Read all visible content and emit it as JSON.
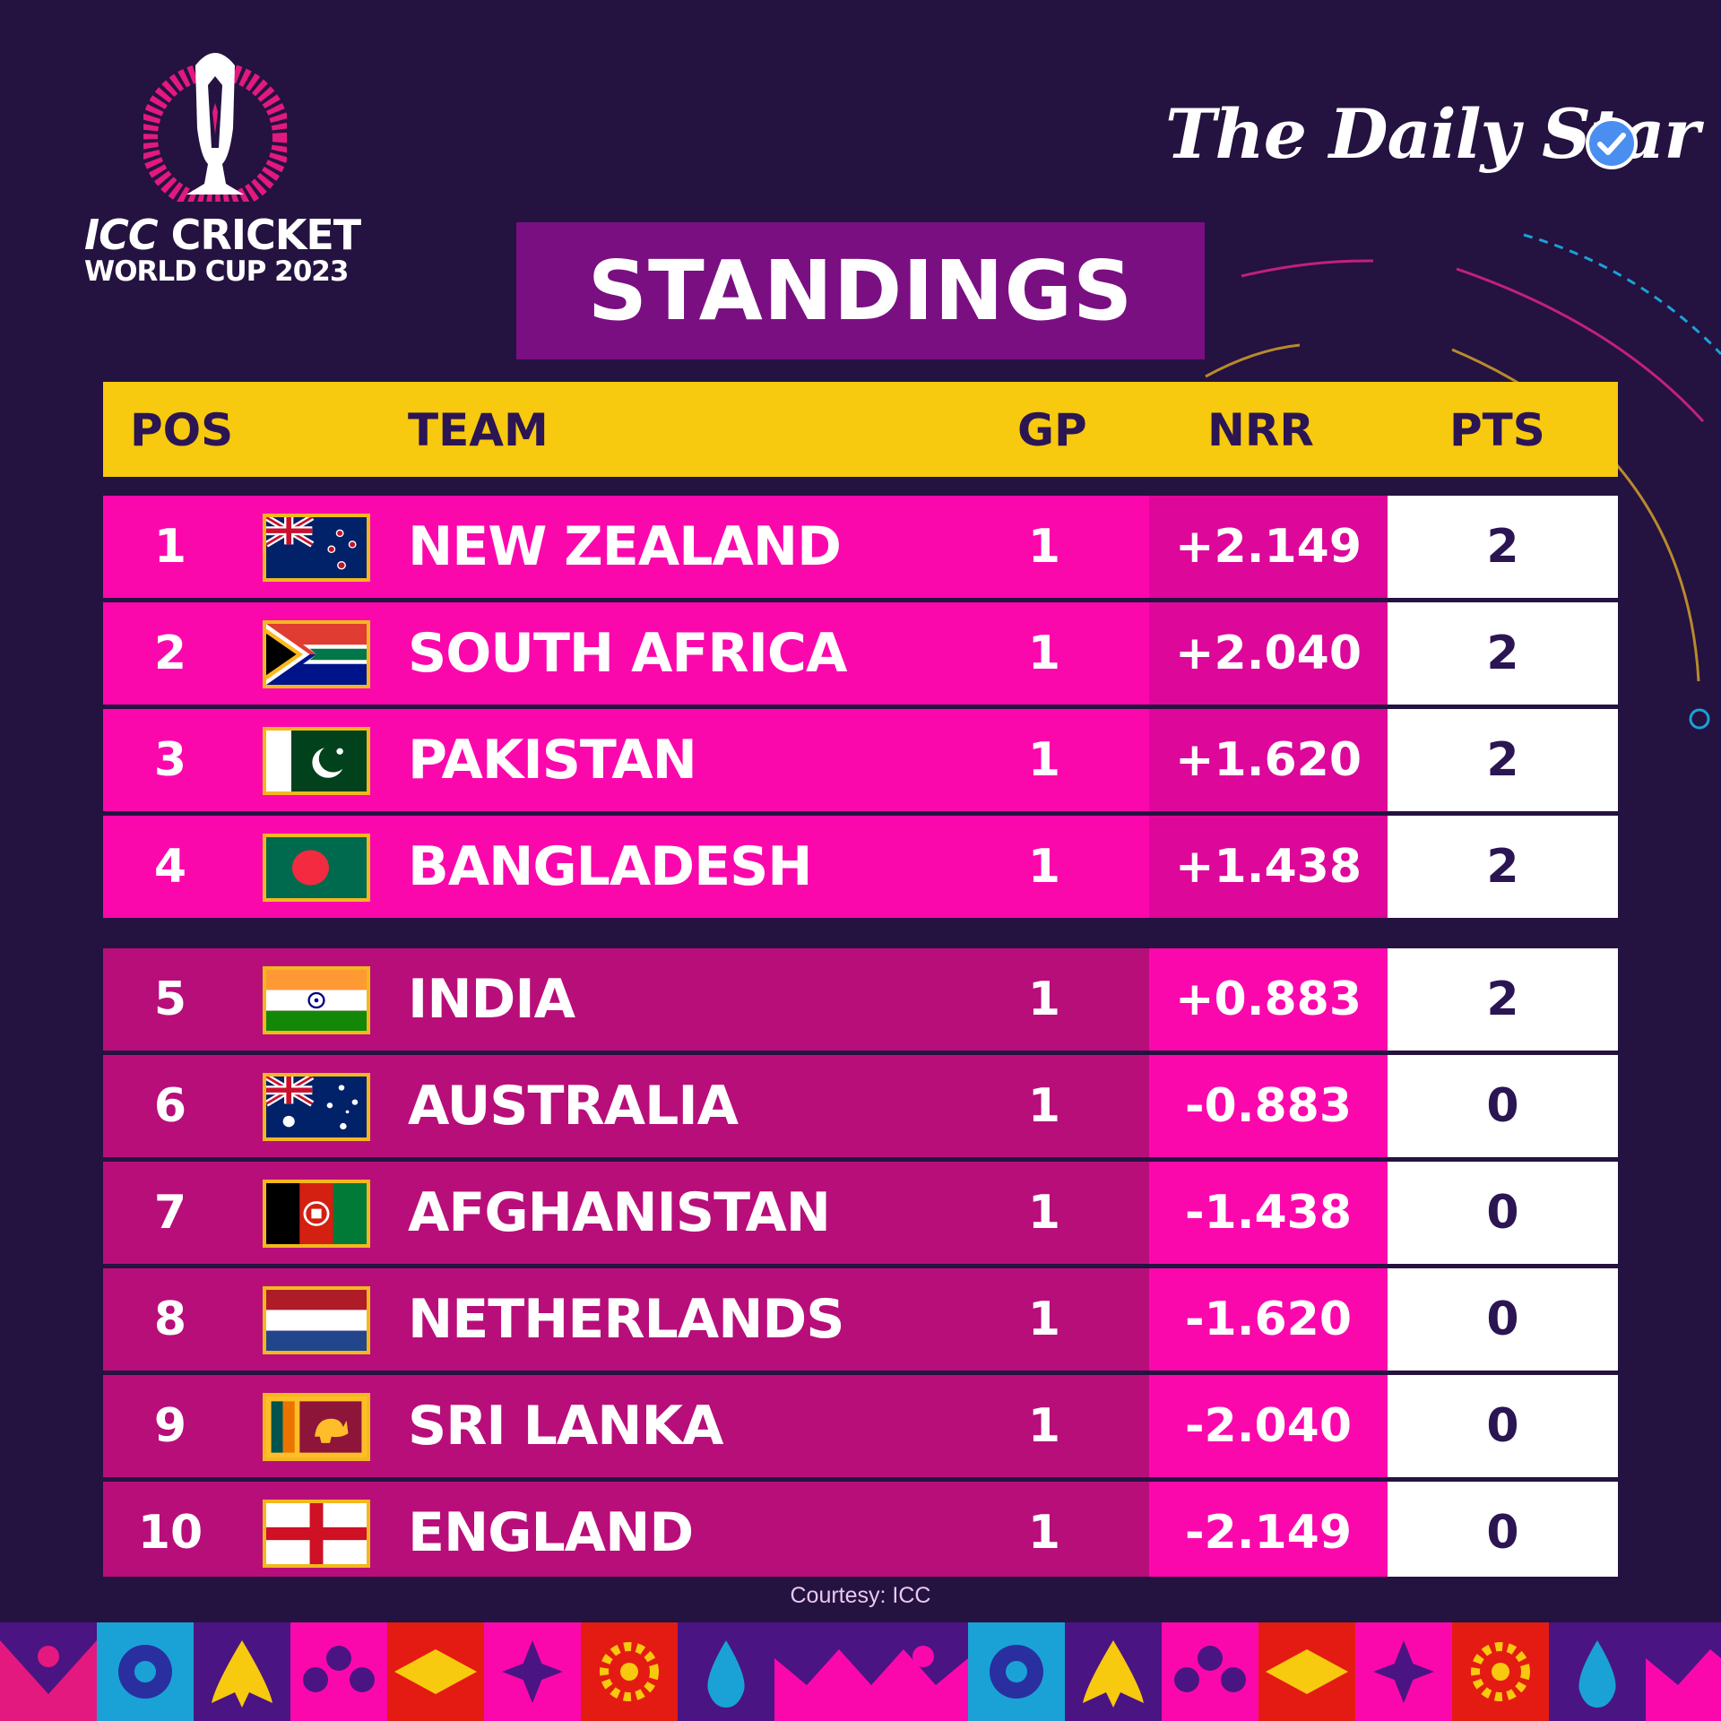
{
  "event_logo": {
    "line1_a": "ICC",
    "line1_b": "CRICKET",
    "line2": "WORLD CUP 2023",
    "icon": "trophy-icon"
  },
  "brand": {
    "name": "The Daily Star",
    "verified_icon": "verified-check-icon"
  },
  "title": "STANDINGS",
  "table": {
    "headers": {
      "pos": "POS",
      "team": "TEAM",
      "gp": "GP",
      "nrr": "NRR",
      "pts": "PTS"
    },
    "rows": [
      {
        "pos": "1",
        "team": "NEW ZEALAND",
        "gp": "1",
        "nrr": "+2.149",
        "pts": "2",
        "flag": "new-zealand-flag-icon"
      },
      {
        "pos": "2",
        "team": "SOUTH AFRICA",
        "gp": "1",
        "nrr": "+2.040",
        "pts": "2",
        "flag": "south-africa-flag-icon"
      },
      {
        "pos": "3",
        "team": "PAKISTAN",
        "gp": "1",
        "nrr": "+1.620",
        "pts": "2",
        "flag": "pakistan-flag-icon"
      },
      {
        "pos": "4",
        "team": "BANGLADESH",
        "gp": "1",
        "nrr": "+1.438",
        "pts": "2",
        "flag": "bangladesh-flag-icon"
      },
      {
        "pos": "5",
        "team": "INDIA",
        "gp": "1",
        "nrr": "+0.883",
        "pts": "2",
        "flag": "india-flag-icon"
      },
      {
        "pos": "6",
        "team": "AUSTRALIA",
        "gp": "1",
        "nrr": "-0.883",
        "pts": "0",
        "flag": "australia-flag-icon"
      },
      {
        "pos": "7",
        "team": "AFGHANISTAN",
        "gp": "1",
        "nrr": "-1.438",
        "pts": "0",
        "flag": "afghanistan-flag-icon"
      },
      {
        "pos": "8",
        "team": "NETHERLANDS",
        "gp": "1",
        "nrr": "-1.620",
        "pts": "0",
        "flag": "netherlands-flag-icon"
      },
      {
        "pos": "9",
        "team": "SRI LANKA",
        "gp": "1",
        "nrr": "-2.040",
        "pts": "0",
        "flag": "sri-lanka-flag-icon"
      },
      {
        "pos": "10",
        "team": "ENGLAND",
        "gp": "1",
        "nrr": "-2.149",
        "pts": "0",
        "flag": "england-flag-icon"
      }
    ]
  },
  "courtesy": "Courtesy: ICC",
  "colors": {
    "background": "#241240",
    "header": "#f7c90f",
    "title_box": "#7a0f82",
    "top_rows": "#fb08ad",
    "other_rows": "#b80e7a",
    "pts_cell": "#ffffff",
    "dark_text": "#2b1553"
  }
}
